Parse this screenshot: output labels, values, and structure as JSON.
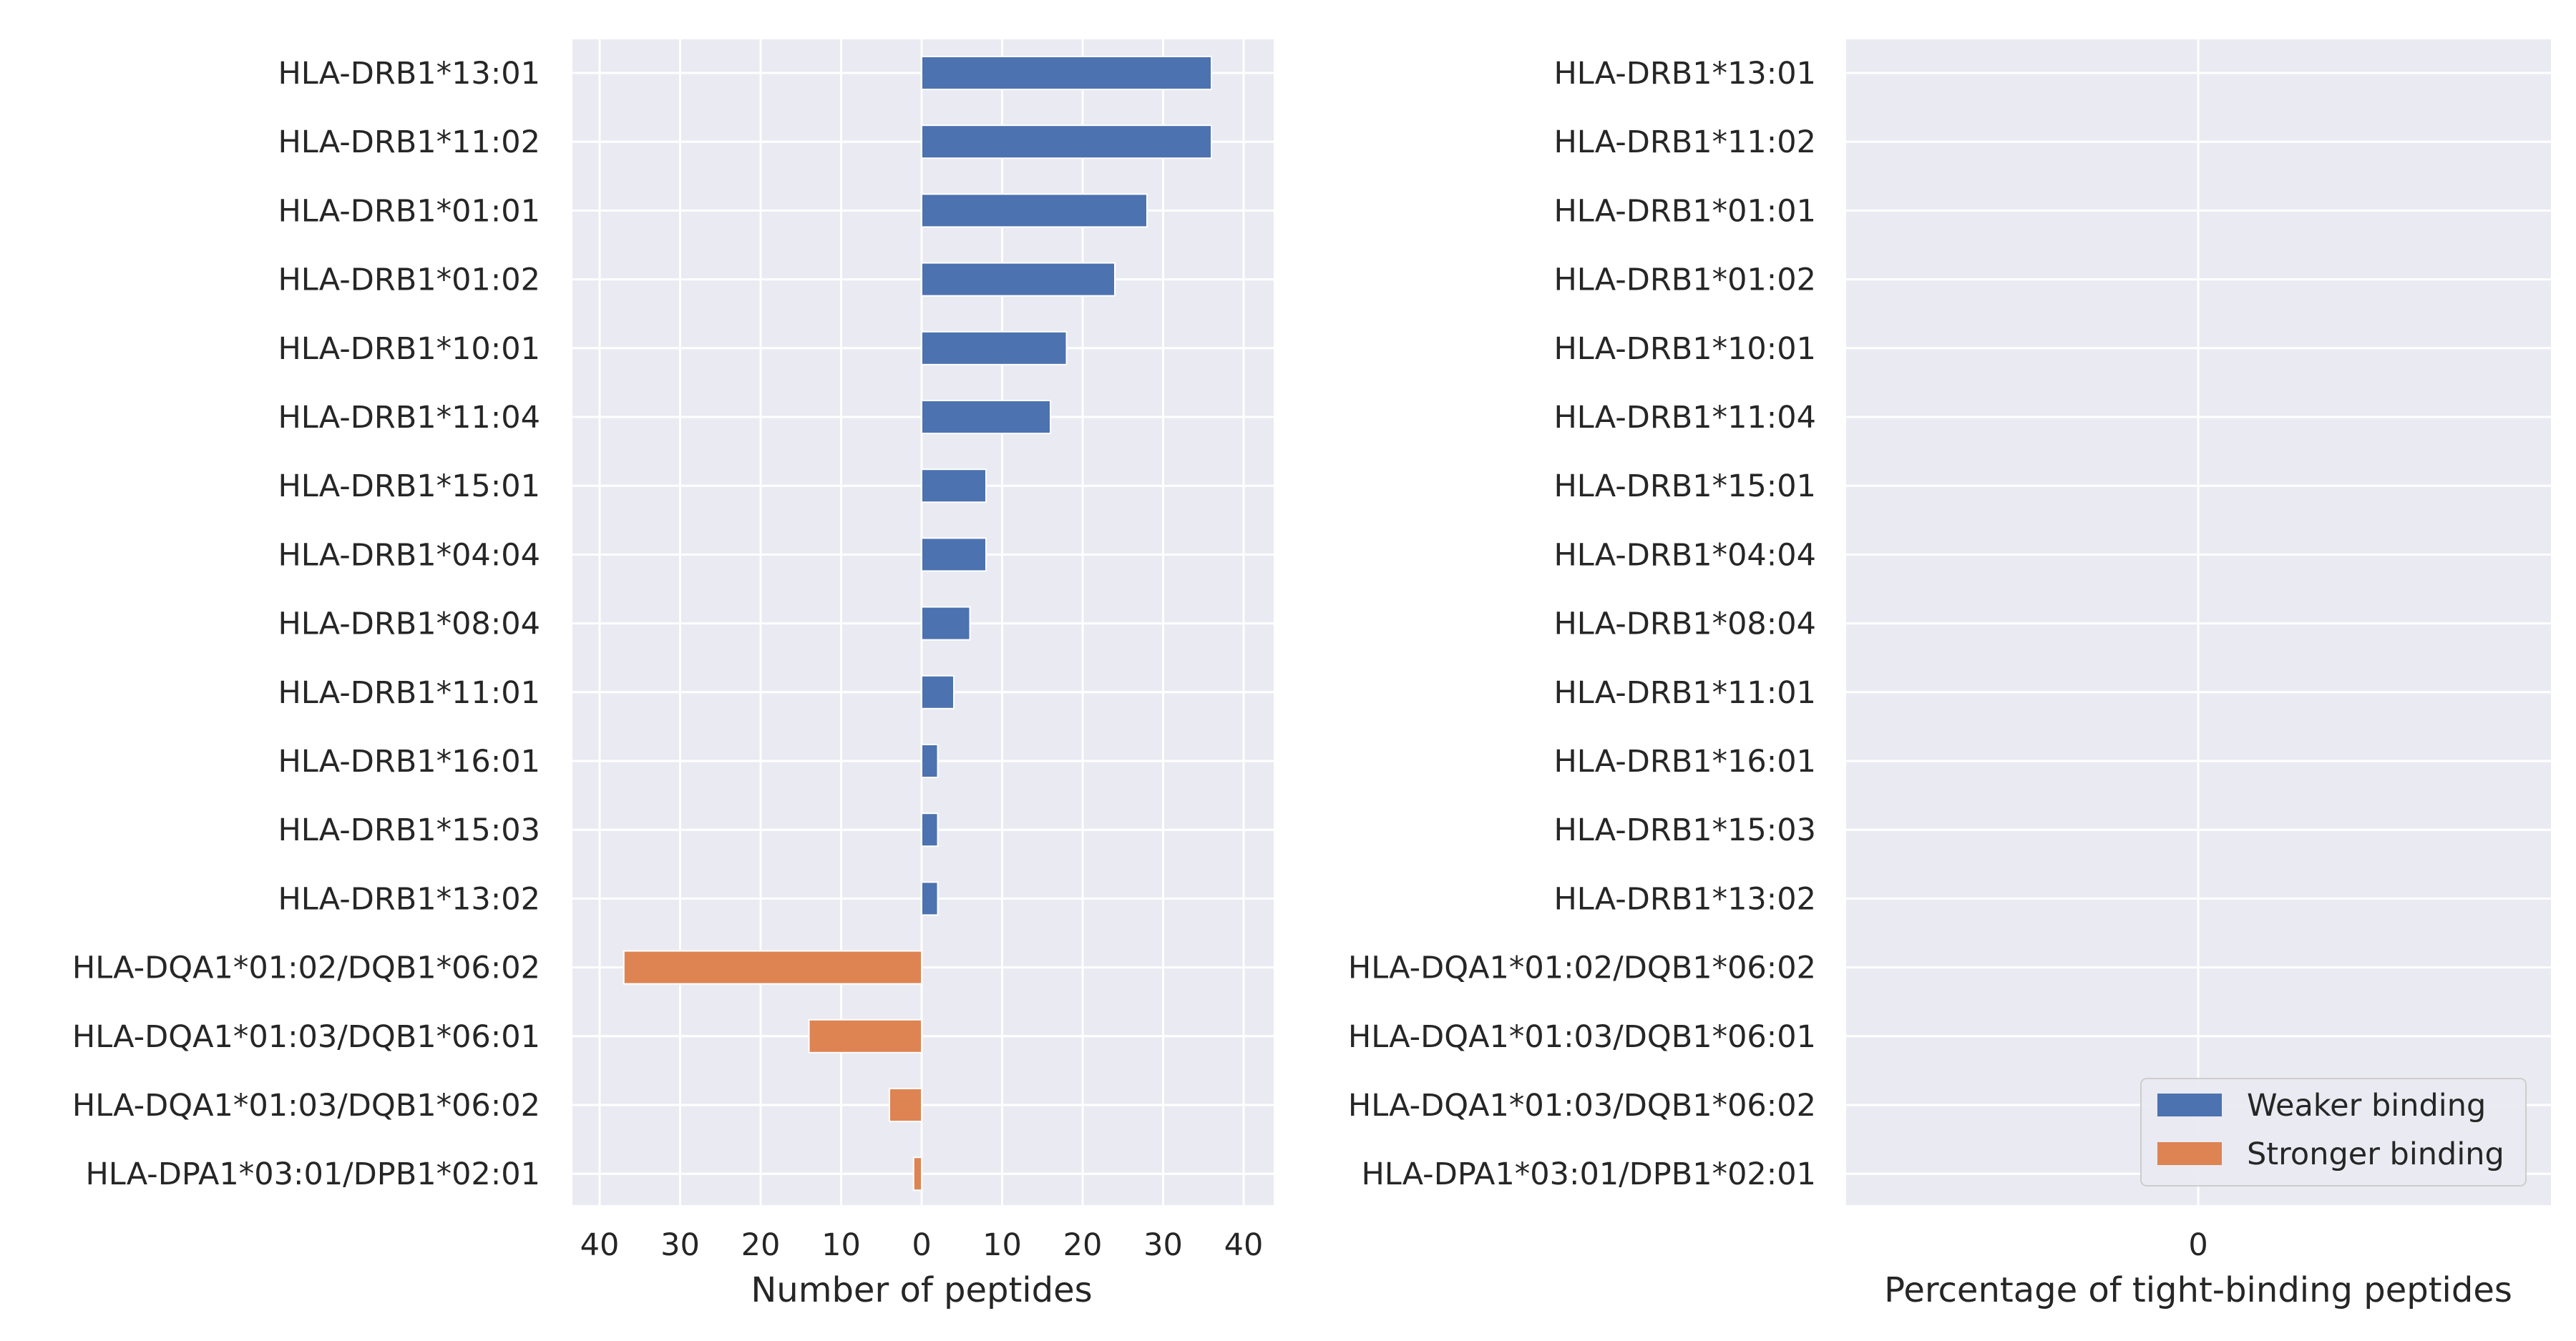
{
  "chart_data": [
    {
      "type": "bar",
      "orientation": "horizontal",
      "categories": [
        "HLA-DRB1*13:01",
        "HLA-DRB1*11:02",
        "HLA-DRB1*01:01",
        "HLA-DRB1*01:02",
        "HLA-DRB1*10:01",
        "HLA-DRB1*11:04",
        "HLA-DRB1*15:01",
        "HLA-DRB1*04:04",
        "HLA-DRB1*08:04",
        "HLA-DRB1*11:01",
        "HLA-DRB1*16:01",
        "HLA-DRB1*15:03",
        "HLA-DRB1*13:02",
        "HLA-DQA1*01:02/DQB1*06:02",
        "HLA-DQA1*01:03/DQB1*06:01",
        "HLA-DQA1*01:03/DQB1*06:02",
        "HLA-DPA1*03:01/DPB1*02:01"
      ],
      "series": [
        {
          "name": "Weaker binding",
          "color": "#4c72b0",
          "values": [
            36,
            36,
            28,
            24,
            18,
            16,
            8,
            8,
            6,
            4,
            2,
            2,
            2,
            0,
            0,
            0,
            0
          ]
        },
        {
          "name": "Stronger binding",
          "color": "#dd8452",
          "values": [
            0,
            0,
            0,
            0,
            0,
            0,
            0,
            0,
            0,
            0,
            0,
            0,
            0,
            37,
            14,
            4,
            1
          ],
          "direction": "left"
        }
      ],
      "xlabel": "Number of peptides",
      "xticks": [
        "40",
        "30",
        "20",
        "10",
        "0",
        "10",
        "20",
        "30",
        "40"
      ],
      "xlim": [
        -44,
        44
      ],
      "grid": true
    },
    {
      "type": "bar",
      "orientation": "horizontal",
      "categories": [
        "HLA-DRB1*13:01",
        "HLA-DRB1*11:02",
        "HLA-DRB1*01:01",
        "HLA-DRB1*01:02",
        "HLA-DRB1*10:01",
        "HLA-DRB1*11:04",
        "HLA-DRB1*15:01",
        "HLA-DRB1*04:04",
        "HLA-DRB1*08:04",
        "HLA-DRB1*11:01",
        "HLA-DRB1*16:01",
        "HLA-DRB1*15:03",
        "HLA-DRB1*13:02",
        "HLA-DQA1*01:02/DQB1*06:02",
        "HLA-DQA1*01:03/DQB1*06:01",
        "HLA-DQA1*01:03/DQB1*06:02",
        "HLA-DPA1*03:01/DPB1*02:01"
      ],
      "series": [
        {
          "name": "Weaker binding",
          "color": "#4c72b0",
          "values": [
            0,
            0,
            0,
            0,
            0,
            0,
            0,
            0,
            0,
            0,
            0,
            0,
            0,
            0,
            0,
            0,
            0
          ]
        },
        {
          "name": "Stronger binding",
          "color": "#dd8452",
          "values": [
            0,
            0,
            0,
            0,
            0,
            0,
            0,
            0,
            0,
            0,
            0,
            0,
            0,
            0,
            0,
            0,
            0
          ]
        }
      ],
      "xlabel": "Percentage of tight-binding peptides",
      "xticks": [
        "0"
      ],
      "grid": true,
      "legend": {
        "position": "bottom-right",
        "entries": [
          {
            "label": "Weaker binding",
            "color": "#4c72b0"
          },
          {
            "label": "Stronger binding",
            "color": "#dd8452"
          }
        ]
      }
    }
  ]
}
